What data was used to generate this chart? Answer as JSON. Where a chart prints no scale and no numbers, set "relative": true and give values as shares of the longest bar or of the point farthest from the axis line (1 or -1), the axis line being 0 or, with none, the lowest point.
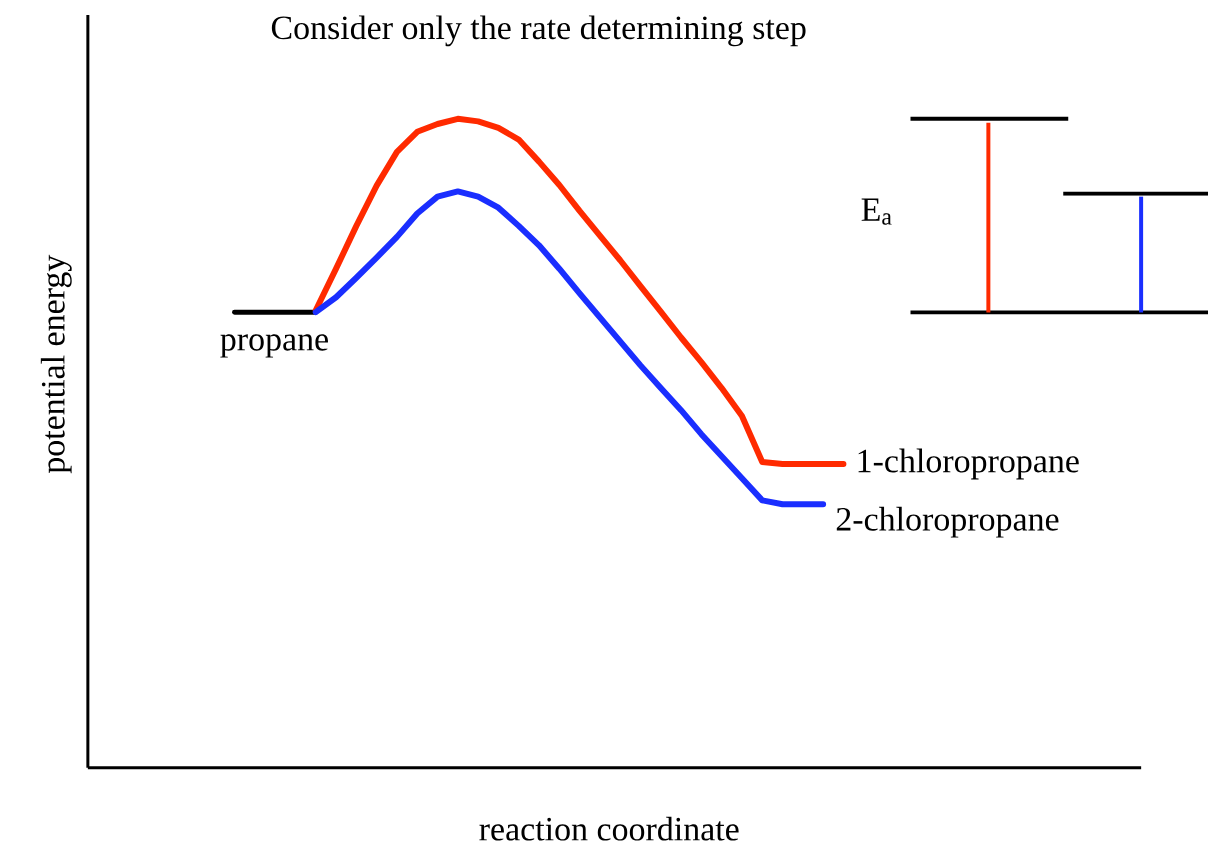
{
  "chart_data": {
    "type": "line",
    "relative": true,
    "title": "Consider only the rate determining step",
    "xlabel": "reaction coordinate",
    "ylabel": "potential energy",
    "annotations": [
      "E$_{a}$"
    ],
    "tick_labels": false,
    "marker": "none",
    "line_style": "solid",
    "categories": [
      null,
      null,
      null,
      null,
      null,
      null,
      null,
      null,
      null,
      null,
      null,
      null,
      null,
      null,
      null,
      null,
      null,
      null,
      null,
      null,
      null,
      null,
      null,
      null,
      null,
      null,
      null,
      null,
      null,
      null,
      null
    ],
    "series": [
      {
        "name": "propane",
        "color": "#000000",
        "values": [
          0.702,
          0.702,
          0.702,
          0.702,
          0.702,
          null,
          null,
          null,
          null,
          null,
          null,
          null,
          null,
          null,
          null,
          null,
          null,
          null,
          null,
          null,
          null,
          null,
          null,
          null,
          null,
          null,
          null,
          null,
          null,
          null,
          null
        ]
      },
      {
        "name": "1-chloropropane",
        "color": "#ff2a00",
        "values": [
          null,
          null,
          null,
          null,
          0.705,
          0.769,
          0.835,
          0.897,
          0.949,
          0.98,
          0.992,
          1,
          0.996,
          0.986,
          0.968,
          0.934,
          0.898,
          0.858,
          0.82,
          0.782,
          0.742,
          0.703,
          0.663,
          0.625,
          0.585,
          0.542,
          0.471,
          0.468,
          0.468,
          0.468,
          0.468
        ]
      },
      {
        "name": "2-chloropropane",
        "color": "#1a2eff",
        "values": [
          null,
          null,
          null,
          null,
          0.702,
          0.725,
          0.755,
          0.786,
          0.818,
          0.854,
          0.88,
          0.888,
          0.88,
          0.863,
          0.835,
          0.805,
          0.769,
          0.731,
          0.694,
          0.657,
          0.62,
          0.585,
          0.551,
          0.514,
          0.48,
          0.446,
          0.412,
          0.406,
          0.406,
          0.406,
          null
        ]
      }
    ]
  }
}
